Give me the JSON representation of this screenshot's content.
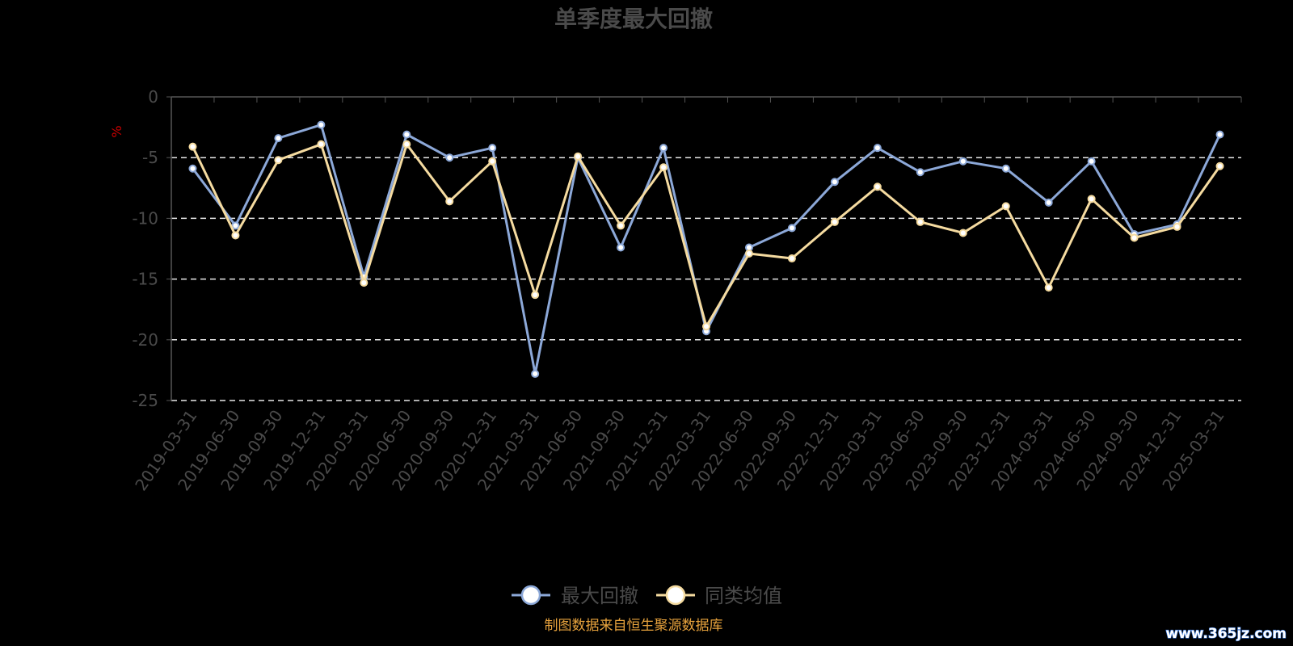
{
  "chart_data": {
    "type": "line",
    "title": "单季度最大回撤",
    "ylabel": "%",
    "xlabel": "",
    "ylim": [
      -25,
      0
    ],
    "yticks": [
      0,
      -5,
      -10,
      -15,
      -20,
      -25
    ],
    "grid": true,
    "legend_position": "bottom-center",
    "categories": [
      "2019-03-31",
      "2019-06-30",
      "2019-09-30",
      "2019-12-31",
      "2020-03-31",
      "2020-06-30",
      "2020-09-30",
      "2020-12-31",
      "2021-03-31",
      "2021-06-30",
      "2021-09-30",
      "2021-12-31",
      "2022-03-31",
      "2022-06-30",
      "2022-09-30",
      "2022-12-31",
      "2023-03-31",
      "2023-06-30",
      "2023-09-30",
      "2023-12-31",
      "2024-03-31",
      "2024-06-30",
      "2024-09-30",
      "2024-12-31",
      "2025-03-31"
    ],
    "series": [
      {
        "name": "最大回撤",
        "color": "#8ca8d8",
        "values": [
          -5.9,
          -10.6,
          -3.4,
          -2.3,
          -14.8,
          -3.1,
          -5.0,
          -4.2,
          -22.8,
          -5.0,
          -12.4,
          -4.2,
          -19.3,
          -12.4,
          -10.8,
          -7.0,
          -4.2,
          -6.2,
          -5.3,
          -5.9,
          -8.7,
          -5.3,
          -11.3,
          -10.5,
          -3.1
        ]
      },
      {
        "name": "同类均值",
        "color": "#f5dba0",
        "values": [
          -4.1,
          -11.4,
          -5.2,
          -3.9,
          -15.3,
          -3.9,
          -8.6,
          -5.3,
          -16.3,
          -4.9,
          -10.6,
          -5.8,
          -18.9,
          -12.9,
          -13.3,
          -10.3,
          -7.4,
          -10.3,
          -11.2,
          -9.0,
          -15.7,
          -8.4,
          -11.6,
          -10.7,
          -5.7
        ]
      }
    ]
  },
  "footer": {
    "source": "制图数据来自恒生聚源数据库"
  }
}
